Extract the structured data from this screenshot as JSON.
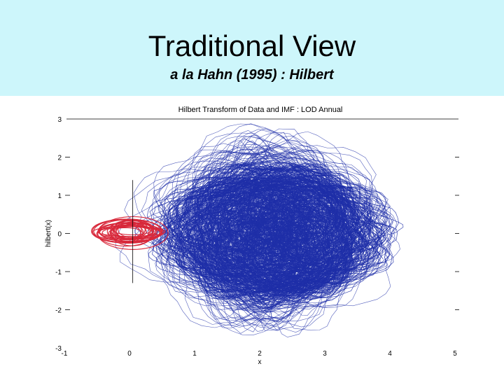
{
  "slide": {
    "title": "Traditional View",
    "subtitle": "a la Hahn  (1995) : Hilbert",
    "header_color": "#cdf6fb"
  },
  "chart_data": {
    "type": "line",
    "title": "Hilbert Transform of Data and IMF : LOD Annual",
    "xlabel": "x",
    "ylabel": "hilbert(x)",
    "xlim": [
      -1,
      5
    ],
    "ylim": [
      -3,
      3
    ],
    "x_ticks": [
      "-1",
      "0",
      "1",
      "2",
      "3",
      "4",
      "5"
    ],
    "y_ticks": [
      "-3",
      "-2",
      "-1",
      "0",
      "1",
      "2",
      "3"
    ],
    "grid": false,
    "series": [
      {
        "color": "#1f2fa8",
        "description_center": [
          2.1,
          0.0
        ],
        "x_range": [
          0.1,
          4.3
        ],
        "y_range": [
          -2.4,
          2.5
        ]
      },
      {
        "color": "#d8283a",
        "description_center": [
          0.0,
          0.05
        ],
        "x_range": [
          -0.55,
          0.6
        ],
        "y_range": [
          -0.5,
          0.6
        ]
      }
    ],
    "reference_line": {
      "x": 0.05,
      "y_from": -1.3,
      "y_to": 1.4
    }
  }
}
